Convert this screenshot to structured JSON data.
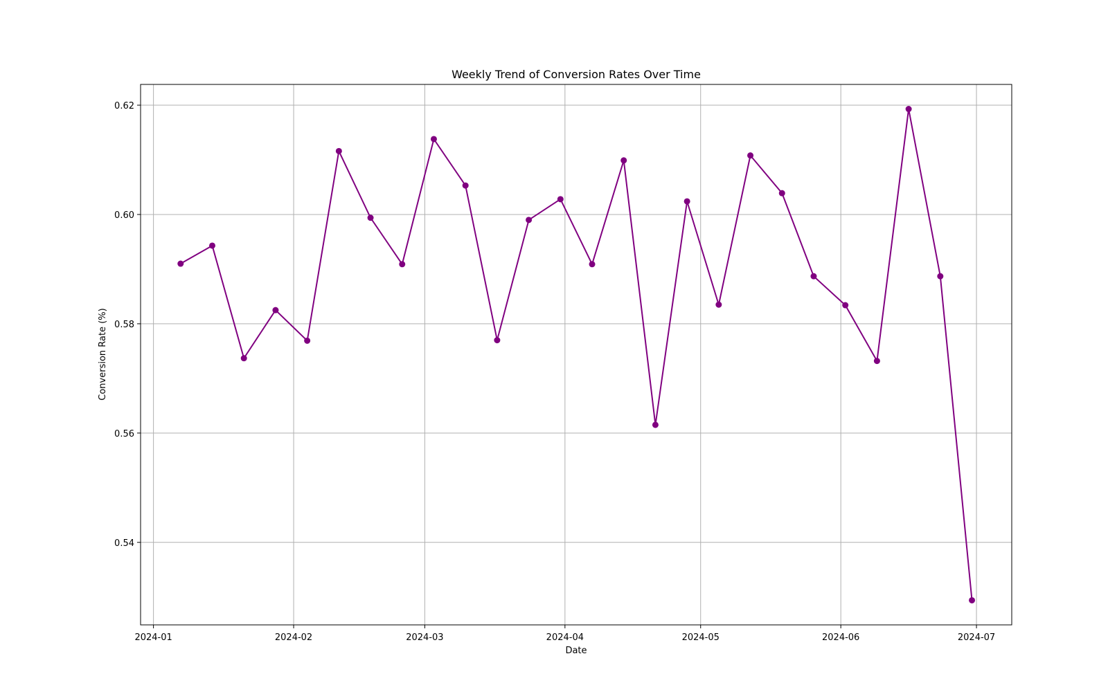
{
  "chart_data": {
    "type": "line",
    "title": "Weekly Trend of Conversion Rates Over Time",
    "x_label": "Date",
    "y_label": "Conversion Rate (%)",
    "x": [
      6,
      13,
      20,
      27,
      34,
      41,
      48,
      55,
      62,
      69,
      76,
      83,
      90,
      97,
      104,
      111,
      118,
      125,
      132,
      139,
      146,
      153,
      160,
      167,
      174,
      181
    ],
    "series": [
      {
        "name": "Conversion Rate",
        "color": "#800080",
        "values": [
          0.591,
          0.5943,
          0.5737,
          0.5825,
          0.5769,
          0.6116,
          0.5994,
          0.5909,
          0.6138,
          0.6053,
          0.577,
          0.599,
          0.6028,
          0.5909,
          0.6099,
          0.5615,
          0.6024,
          0.5835,
          0.6108,
          0.6039,
          0.5887,
          0.5834,
          0.5732,
          0.6193,
          0.5887,
          0.5294
        ]
      }
    ],
    "xlim": [
      -2.85,
      189.8
    ],
    "xticks": [
      {
        "value": 0,
        "label": "2024-01"
      },
      {
        "value": 31,
        "label": "2024-02"
      },
      {
        "value": 60,
        "label": "2024-03"
      },
      {
        "value": 91,
        "label": "2024-04"
      },
      {
        "value": 121,
        "label": "2024-05"
      },
      {
        "value": 152,
        "label": "2024-06"
      },
      {
        "value": 182,
        "label": "2024-07"
      }
    ],
    "ylim": [
      0.5249,
      0.6238
    ],
    "yticks": [
      0.54,
      0.56,
      0.58,
      {
        "value": 0.6,
        "label": "0.60"
      },
      0.62
    ],
    "grid": true
  }
}
